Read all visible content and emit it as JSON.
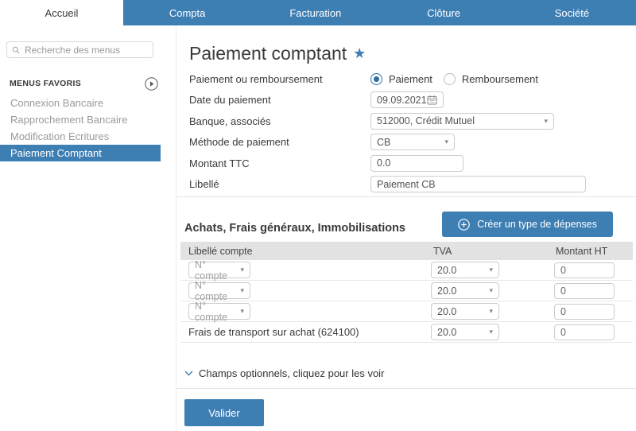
{
  "colors": {
    "accent": "#3d7eb3"
  },
  "nav": {
    "active_tab": "Accueil",
    "tabs": [
      "Compta",
      "Facturation",
      "Clôture",
      "Société"
    ]
  },
  "sidebar": {
    "search_placeholder": "Recherche des menus",
    "favorites_header": "MENUS FAVORIS",
    "items": [
      {
        "label": "Connexion Bancaire",
        "selected": false
      },
      {
        "label": "Rapprochement Bancaire",
        "selected": false
      },
      {
        "label": "Modification Ecritures",
        "selected": false
      },
      {
        "label": "Paiement Comptant",
        "selected": true
      }
    ]
  },
  "main": {
    "title": "Paiement comptant",
    "form": {
      "payment_type_label": "Paiement ou remboursement",
      "payment_options": [
        {
          "label": "Paiement",
          "selected": true
        },
        {
          "label": "Remboursement",
          "selected": false
        }
      ],
      "date_label": "Date du paiement",
      "date_value": "09.09.2021",
      "bank_label": "Banque, associés",
      "bank_value": "512000, Crédit Mutuel",
      "method_label": "Méthode de paiement",
      "method_value": "CB",
      "amount_label": "Montant TTC",
      "amount_value": "0.0",
      "memo_label": "Libellé",
      "memo_value": "Paiement CB"
    },
    "create_expense_button": "Créer un type de dépenses",
    "section_title": "Achats, Frais généraux, Immobilisations",
    "table": {
      "headers": [
        "Libellé compte",
        "TVA",
        "Montant HT"
      ],
      "rows": [
        {
          "account": "N° compte",
          "is_select": true,
          "tva": "20.0",
          "amount": "0"
        },
        {
          "account": "N° compte",
          "is_select": true,
          "tva": "20.0",
          "amount": "0"
        },
        {
          "account": "N° compte",
          "is_select": true,
          "tva": "20.0",
          "amount": "0"
        },
        {
          "account": "Frais de transport sur achat (624100)",
          "is_select": false,
          "tva": "20.0",
          "amount": "0"
        }
      ]
    },
    "optional_fields_label": "Champs optionnels, cliquez pour les voir",
    "submit_label": "Valider"
  }
}
